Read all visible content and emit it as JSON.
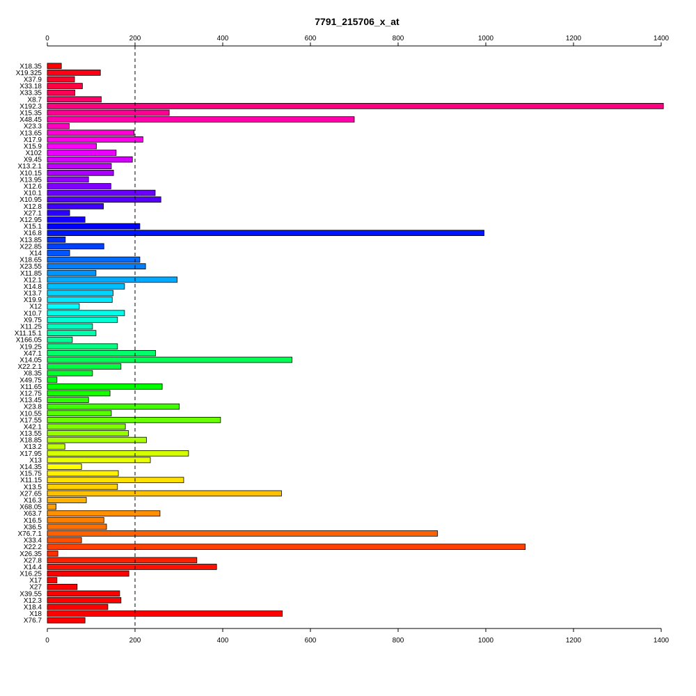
{
  "chart_data": {
    "type": "bar",
    "orientation": "horizontal",
    "title": "7791_215706_x_at",
    "xlabel": "",
    "ylabel": "",
    "xlim": [
      0,
      1400
    ],
    "x_ticks": [
      0,
      200,
      400,
      600,
      800,
      1000,
      1200,
      1400
    ],
    "reference_line": 200,
    "grid": false,
    "categories": [
      "X18.35",
      "X19.325",
      "X37.9",
      "X33.18",
      "X33.35",
      "X8.7",
      "X192.3",
      "X15.35",
      "X48.45",
      "X23.3",
      "X13.65",
      "X17.9",
      "X15.9",
      "X102",
      "X9.45",
      "X13.2.1",
      "X10.15",
      "X13.95",
      "X12.6",
      "X10.1",
      "X10.95",
      "X12.8",
      "X27.1",
      "X12.95",
      "X15.1",
      "X16.8",
      "X13.85",
      "X22.85",
      "X14",
      "X18.65",
      "X23.55",
      "X11.85",
      "X12.1",
      "X14.8",
      "X13.7",
      "X19.9",
      "X12",
      "X10.7",
      "X9.75",
      "X11.25",
      "X11.15.1",
      "X166.05",
      "X19.25",
      "X47.1",
      "X14.05",
      "X22.2.1",
      "X8.35",
      "X49.75",
      "X11.65",
      "X12.75",
      "X13.45",
      "X23.8",
      "X10.55",
      "X17.55",
      "X42.1",
      "X13.55",
      "X18.85",
      "X13.2",
      "X17.95",
      "X13",
      "X14.35",
      "X15.75",
      "X11.15",
      "X13.5",
      "X27.65",
      "X16.3",
      "X68.05",
      "X63.7",
      "X16.5",
      "X36.5",
      "X76.7.1",
      "X33.4",
      "X22.2",
      "X26.35",
      "X27.8",
      "X14.4",
      "X16.25",
      "X17",
      "X27",
      "X39.55",
      "X12.3",
      "X18.4",
      "X18",
      "X76.7"
    ],
    "values": [
      32,
      121,
      62,
      80,
      63,
      123,
      1405,
      278,
      700,
      50,
      198,
      218,
      112,
      157,
      194,
      146,
      151,
      94,
      145,
      246,
      259,
      128,
      51,
      86,
      211,
      996,
      41,
      129,
      51,
      211,
      224,
      111,
      296,
      176,
      150,
      148,
      73,
      176,
      160,
      103,
      111,
      57,
      160,
      247,
      558,
      168,
      103,
      22,
      262,
      143,
      94,
      301,
      146,
      395,
      178,
      185,
      226,
      40,
      322,
      235,
      78,
      162,
      311,
      160,
      534,
      89,
      20,
      257,
      129,
      135,
      890,
      78,
      1090,
      24,
      341,
      386,
      186,
      22,
      68,
      165,
      168,
      138,
      536,
      86
    ],
    "colors": [
      "#FF0000",
      "#FF0015",
      "#FF002B",
      "#FF0040",
      "#FF0055",
      "#FF006A",
      "#FF0080",
      "#FF0095",
      "#FF00AA",
      "#FF00BF",
      "#FF00D5",
      "#FF00EA",
      "#FF00FF",
      "#EA00FF",
      "#D500FF",
      "#BF00FF",
      "#AA00FF",
      "#9500FF",
      "#8000FF",
      "#6A00FF",
      "#5500FF",
      "#4000FF",
      "#2B00FF",
      "#1500FF",
      "#0000FF",
      "#0015FF",
      "#002BFF",
      "#0040FF",
      "#0055FF",
      "#006AFF",
      "#0080FF",
      "#0095FF",
      "#00AAFF",
      "#00BFFF",
      "#00D5FF",
      "#00EAFF",
      "#00FFFF",
      "#00FFEA",
      "#00FFD5",
      "#00FFBF",
      "#00FFAA",
      "#00FF95",
      "#00FF80",
      "#00FF6A",
      "#00FF55",
      "#00FF40",
      "#00FF2B",
      "#00FF15",
      "#00FF00",
      "#15FF00",
      "#2BFF00",
      "#40FF00",
      "#55FF00",
      "#6AFF00",
      "#80FF00",
      "#95FF00",
      "#AAFF00",
      "#BFFF00",
      "#D5FF00",
      "#EAFF00",
      "#FFFF00",
      "#FFF000",
      "#FFE000",
      "#FFD000",
      "#FFC000",
      "#FFB000",
      "#FFA000",
      "#FF9000",
      "#FF8000",
      "#FF7000",
      "#FF6000",
      "#FF5000",
      "#FF4000",
      "#FF3000",
      "#FF2000",
      "#FF1000",
      "#FF0000",
      "#FF0000",
      "#FF0000",
      "#FF0000",
      "#FF0000",
      "#FF0000",
      "#FF0000",
      "#FF0000"
    ]
  }
}
